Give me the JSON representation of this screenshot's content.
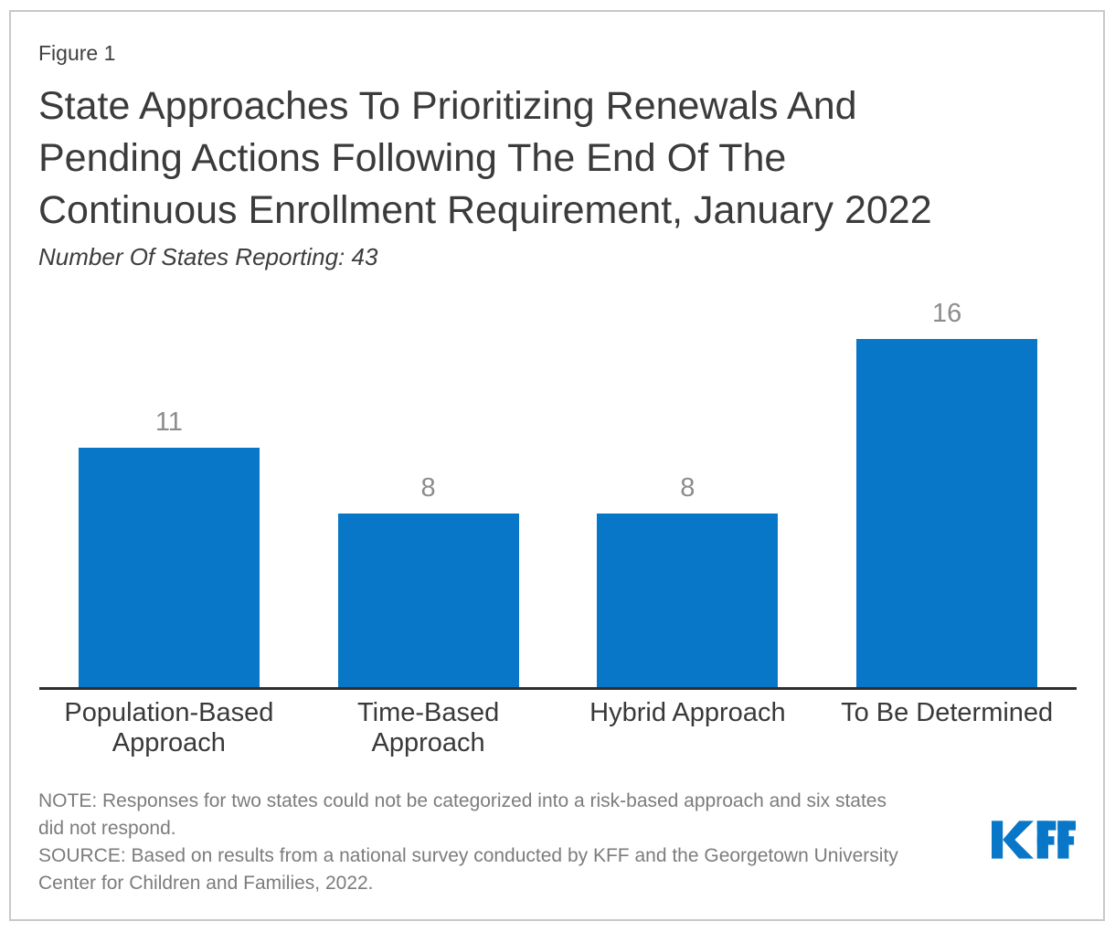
{
  "figure_label": "Figure 1",
  "header": {
    "title_lines": [
      "State Approaches To Prioritizing Renewals And",
      "Pending Actions Following The End Of The",
      "Continuous Enrollment Requirement, January 2022"
    ],
    "subtitle": "Number Of States Reporting: 43"
  },
  "chart_data": {
    "type": "bar",
    "title": "State Approaches To Prioritizing Renewals And Pending Actions Following The End Of The Continuous Enrollment Requirement, January 2022",
    "subtitle": "Number Of States Reporting: 43",
    "categories": [
      "Population-Based Approach",
      "Time-Based Approach",
      "Hybrid Approach",
      "To Be Determined"
    ],
    "category_lines": [
      [
        "Population-Based",
        "Approach"
      ],
      [
        "Time-Based",
        "Approach"
      ],
      [
        "Hybrid Approach"
      ],
      [
        "To Be Determined"
      ]
    ],
    "values": [
      11,
      8,
      8,
      16
    ],
    "ylim": [
      0,
      16
    ],
    "grid": false,
    "legend": false,
    "bar_color": "#0877C8",
    "value_labels_shown": true
  },
  "footer": {
    "note_lines": [
      "NOTE: Responses for two states could not be categorized into a risk-based approach and six states",
      "did not respond."
    ],
    "source_lines": [
      "SOURCE: Based on results from a national survey conducted by KFF and the Georgetown University",
      "Center for Children and Families, 2022."
    ],
    "logo_text": "KFF"
  },
  "colors": {
    "accent_blue": "#0877C8",
    "title_text": "#3B3B3B",
    "value_label": "#8C8C8C",
    "category_label": "#393939",
    "footer_text": "#7C7C7C",
    "axis_line": "#2D2D2D",
    "card_border": "#C9C9C9"
  }
}
